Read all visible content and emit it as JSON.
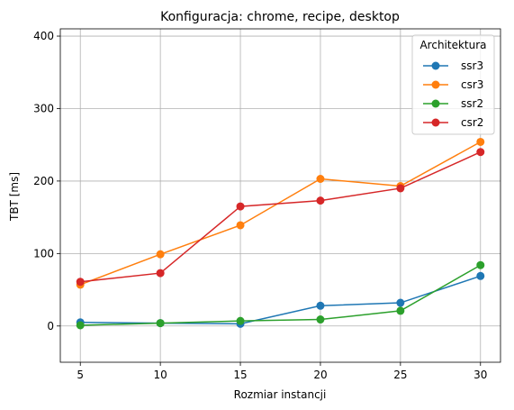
{
  "chart_data": {
    "type": "line",
    "title": "Konfiguracja: chrome, recipe, desktop",
    "xlabel": "Rozmiar instancji",
    "ylabel": "TBT [ms]",
    "x": [
      5,
      10,
      15,
      20,
      25,
      30
    ],
    "xticks": [
      5,
      10,
      15,
      20,
      25,
      30
    ],
    "yticks": [
      0,
      100,
      200,
      300,
      400
    ],
    "xlim": [
      3.75,
      31.25
    ],
    "ylim": [
      -50,
      410
    ],
    "grid": true,
    "legend": {
      "title": "Architektura",
      "placement": "top-right"
    },
    "series": [
      {
        "name": "ssr3",
        "color": "#1f77b4",
        "values": [
          5,
          4,
          3,
          28,
          32,
          69
        ]
      },
      {
        "name": "csr3",
        "color": "#ff7f0e",
        "values": [
          57,
          99,
          139,
          203,
          193,
          254
        ]
      },
      {
        "name": "ssr2",
        "color": "#2ca02c",
        "values": [
          1,
          4,
          7,
          9,
          21,
          84
        ]
      },
      {
        "name": "csr2",
        "color": "#d62728",
        "values": [
          61,
          73,
          165,
          173,
          190,
          240
        ]
      }
    ]
  }
}
